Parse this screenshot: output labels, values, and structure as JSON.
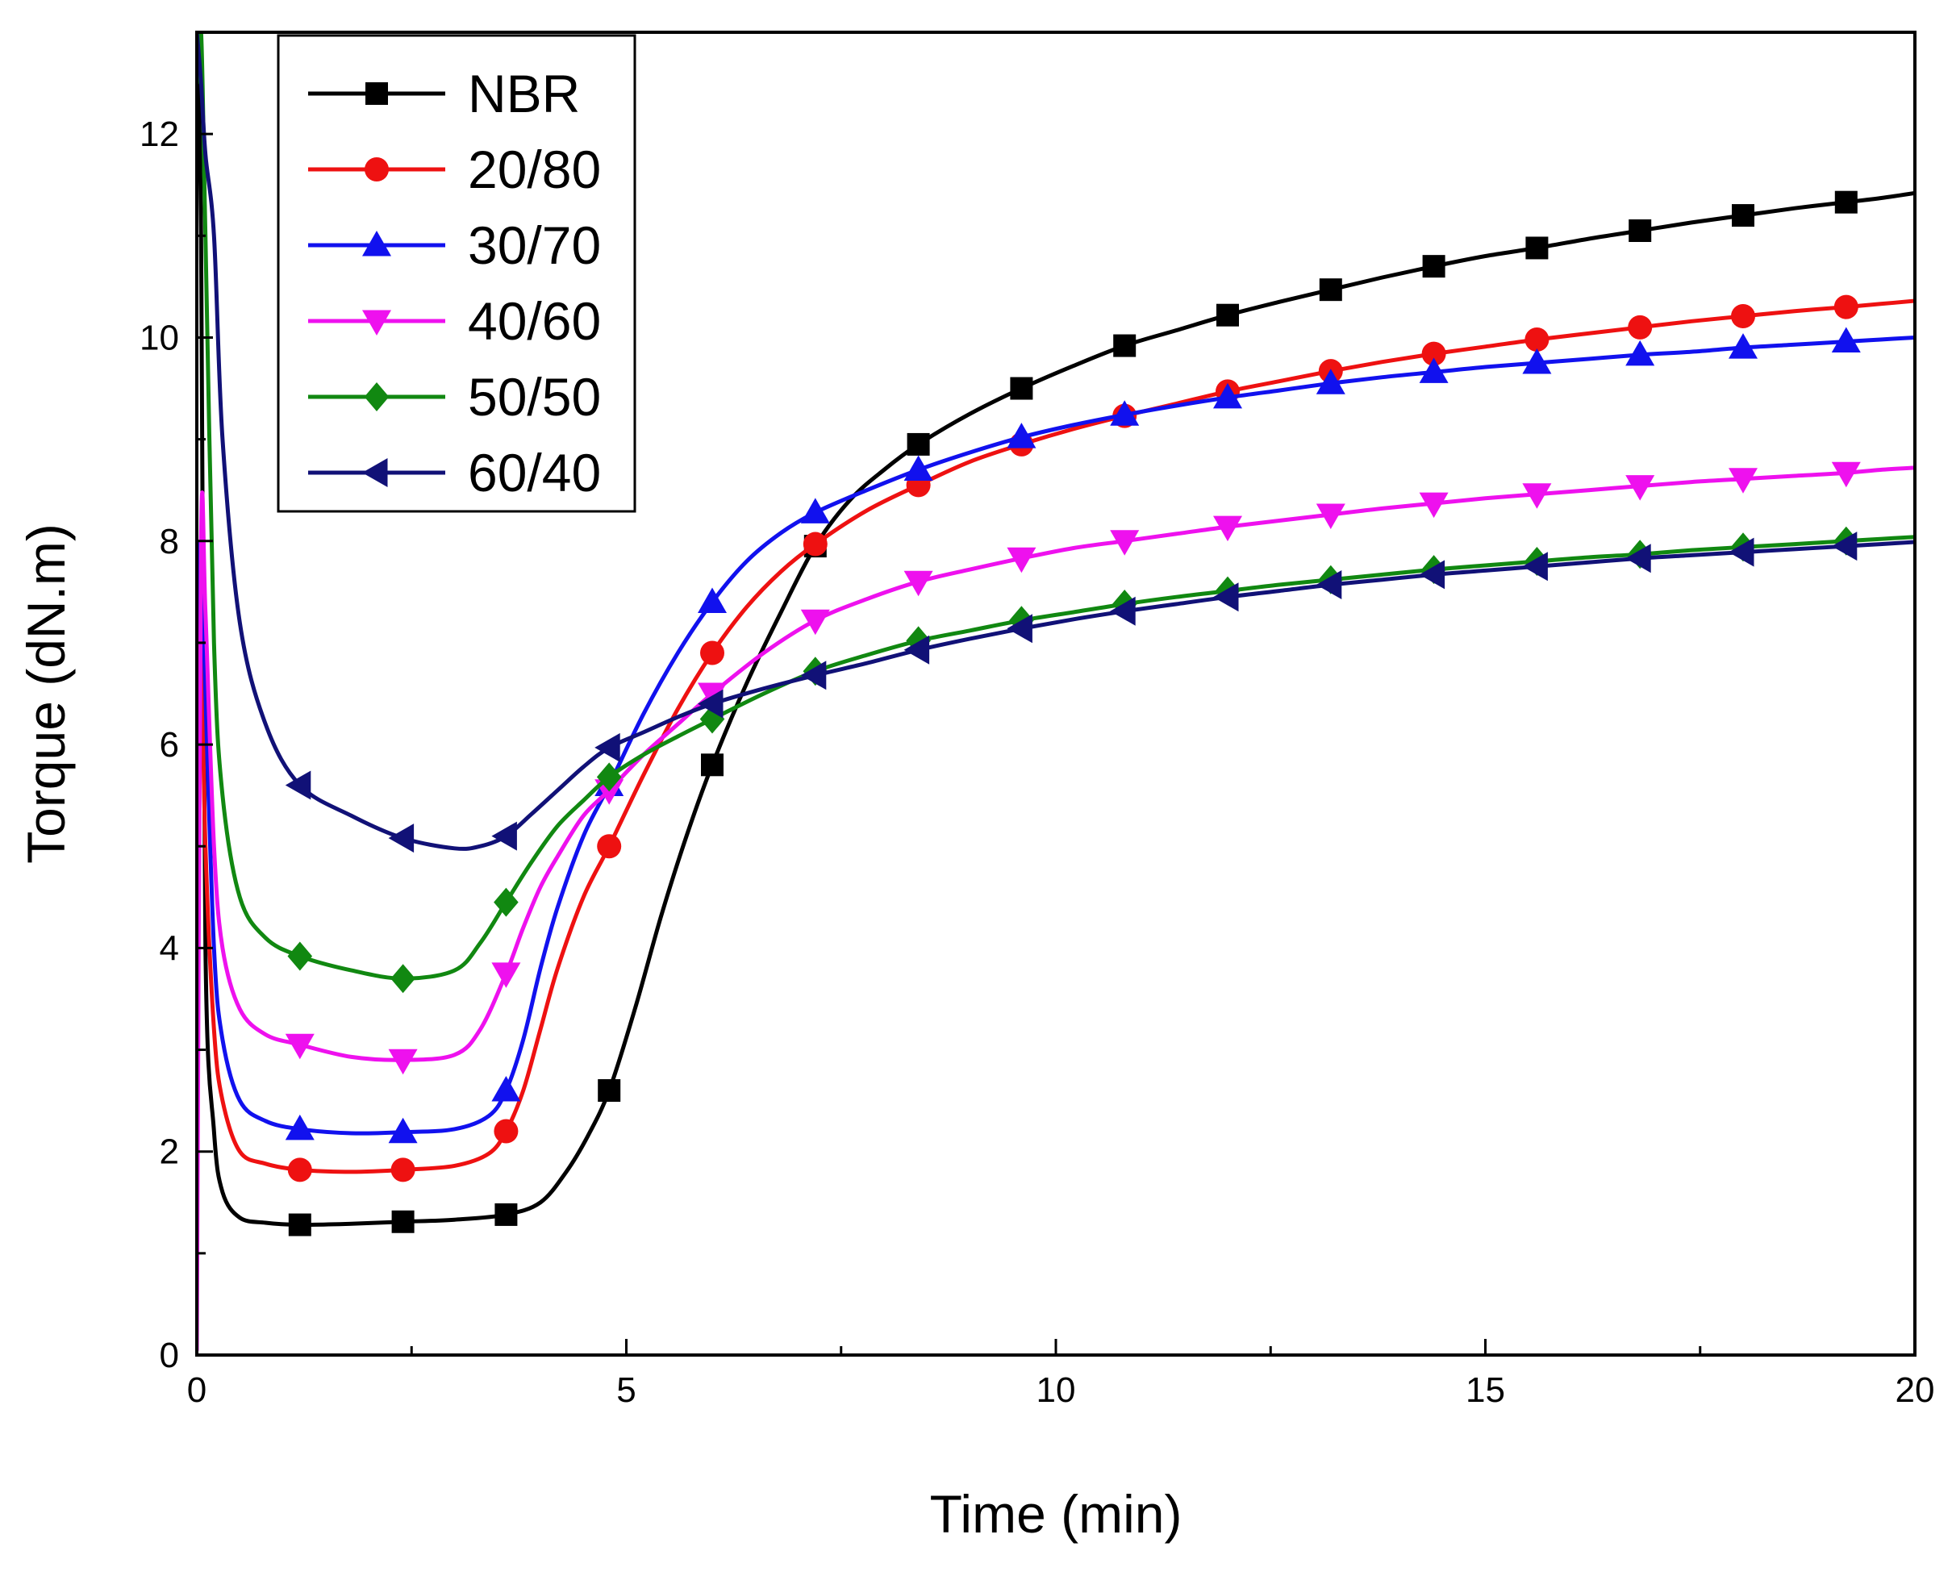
{
  "chart_data": {
    "type": "line",
    "title": "",
    "xlabel": "Time (min)",
    "ylabel": "Torque (dN.m)",
    "xlim": [
      0,
      20
    ],
    "ylim": [
      0,
      13
    ],
    "xticks": [
      0,
      5,
      10,
      15,
      20
    ],
    "yticks": [
      0,
      2,
      4,
      6,
      8,
      10,
      12
    ],
    "grid": false,
    "legend_position": "top-left",
    "series": [
      {
        "name": "NBR",
        "color": "#000000",
        "marker": "square",
        "x": [
          0.0,
          0.05,
          0.1,
          0.2,
          0.3,
          0.5,
          0.8,
          1.2,
          1.8,
          2.4,
          3.0,
          3.6,
          4.0,
          4.3,
          4.55,
          4.8,
          5.1,
          5.4,
          5.7,
          6.0,
          6.4,
          6.8,
          7.2,
          7.6,
          8.0,
          8.4,
          9.0,
          9.6,
          10.2,
          10.8,
          11.4,
          12.0,
          12.6,
          13.2,
          13.8,
          14.4,
          15.0,
          15.6,
          16.2,
          16.8,
          17.4,
          18.0,
          18.6,
          19.2,
          19.6,
          20.0
        ],
        "y": [
          13.0,
          11.0,
          4.0,
          2.2,
          1.6,
          1.35,
          1.3,
          1.28,
          1.29,
          1.31,
          1.33,
          1.38,
          1.5,
          1.8,
          2.15,
          2.6,
          3.4,
          4.3,
          5.1,
          5.8,
          6.6,
          7.3,
          7.95,
          8.4,
          8.7,
          8.95,
          9.25,
          9.5,
          9.72,
          9.92,
          10.07,
          10.22,
          10.35,
          10.47,
          10.59,
          10.7,
          10.8,
          10.88,
          10.97,
          11.05,
          11.13,
          11.2,
          11.27,
          11.33,
          11.37,
          11.42
        ],
        "markers_x": [
          1.2,
          2.4,
          3.6,
          4.8,
          6.0,
          7.2,
          8.4,
          9.6,
          10.8,
          12.0,
          13.2,
          14.4,
          15.6,
          16.8,
          18.0,
          19.2
        ]
      },
      {
        "name": "20/80",
        "color": "#ee1111",
        "marker": "circle",
        "x": [
          0.0,
          0.05,
          0.1,
          0.2,
          0.3,
          0.5,
          0.8,
          1.2,
          1.8,
          2.4,
          3.0,
          3.4,
          3.6,
          3.8,
          4.0,
          4.2,
          4.5,
          4.8,
          5.2,
          5.6,
          6.0,
          6.4,
          6.8,
          7.2,
          7.8,
          8.4,
          9.0,
          9.6,
          10.2,
          10.8,
          11.4,
          12.0,
          12.6,
          13.2,
          13.8,
          14.4,
          15.0,
          15.6,
          16.2,
          16.8,
          17.4,
          18.0,
          18.6,
          19.2,
          19.6,
          20.0
        ],
        "y": [
          6.0,
          7.0,
          5.0,
          3.2,
          2.5,
          2.0,
          1.88,
          1.82,
          1.8,
          1.82,
          1.86,
          1.98,
          2.2,
          2.6,
          3.2,
          3.8,
          4.5,
          5.0,
          5.7,
          6.35,
          6.9,
          7.35,
          7.7,
          7.97,
          8.3,
          8.55,
          8.78,
          8.95,
          9.1,
          9.23,
          9.35,
          9.47,
          9.57,
          9.67,
          9.76,
          9.84,
          9.91,
          9.98,
          10.04,
          10.1,
          10.16,
          10.21,
          10.26,
          10.3,
          10.33,
          10.36
        ],
        "markers_x": [
          1.2,
          2.4,
          3.6,
          4.8,
          6.0,
          7.2,
          8.4,
          9.6,
          10.8,
          12.0,
          13.2,
          14.4,
          15.6,
          16.8,
          18.0,
          19.2
        ]
      },
      {
        "name": "30/70",
        "color": "#1111ee",
        "marker": "triangle-up",
        "x": [
          0.0,
          0.05,
          0.1,
          0.2,
          0.3,
          0.5,
          0.8,
          1.2,
          1.8,
          2.4,
          3.0,
          3.4,
          3.6,
          3.8,
          4.0,
          4.2,
          4.5,
          4.8,
          5.2,
          5.6,
          6.0,
          6.4,
          6.8,
          7.2,
          7.8,
          8.4,
          9.0,
          9.6,
          10.2,
          10.8,
          11.4,
          12.0,
          12.6,
          13.2,
          13.8,
          14.4,
          15.0,
          15.6,
          16.2,
          16.8,
          17.4,
          18.0,
          18.6,
          19.2,
          19.6,
          20.0
        ],
        "y": [
          7.0,
          8.0,
          6.5,
          4.0,
          3.1,
          2.5,
          2.3,
          2.22,
          2.18,
          2.19,
          2.22,
          2.35,
          2.6,
          3.1,
          3.8,
          4.4,
          5.1,
          5.6,
          6.3,
          6.9,
          7.4,
          7.8,
          8.08,
          8.28,
          8.5,
          8.7,
          8.87,
          9.02,
          9.14,
          9.24,
          9.33,
          9.41,
          9.48,
          9.55,
          9.61,
          9.66,
          9.71,
          9.75,
          9.79,
          9.83,
          9.86,
          9.9,
          9.93,
          9.96,
          9.98,
          10.0
        ],
        "markers_x": [
          1.2,
          2.4,
          3.6,
          4.8,
          6.0,
          7.2,
          8.4,
          9.6,
          10.8,
          12.0,
          13.2,
          14.4,
          15.6,
          16.8,
          18.0,
          19.2
        ]
      },
      {
        "name": "40/60",
        "color": "#ee11ee",
        "marker": "triangle-down",
        "x": [
          0.0,
          0.05,
          0.1,
          0.2,
          0.3,
          0.5,
          0.8,
          1.2,
          1.8,
          2.4,
          3.0,
          3.3,
          3.6,
          3.8,
          4.0,
          4.2,
          4.5,
          4.8,
          5.2,
          5.6,
          6.0,
          6.6,
          7.2,
          7.8,
          8.4,
          9.0,
          9.6,
          10.2,
          10.8,
          11.4,
          12.0,
          12.6,
          13.2,
          13.8,
          14.4,
          15.0,
          15.6,
          16.2,
          16.8,
          17.4,
          18.0,
          18.6,
          19.2,
          19.6,
          20.0
        ],
        "y": [
          0.05,
          8.0,
          7.3,
          5.0,
          4.0,
          3.4,
          3.15,
          3.05,
          2.93,
          2.9,
          2.95,
          3.2,
          3.75,
          4.2,
          4.6,
          4.9,
          5.3,
          5.55,
          5.9,
          6.2,
          6.5,
          6.9,
          7.22,
          7.43,
          7.6,
          7.72,
          7.83,
          7.93,
          8.0,
          8.07,
          8.14,
          8.2,
          8.26,
          8.32,
          8.37,
          8.42,
          8.46,
          8.5,
          8.54,
          8.58,
          8.61,
          8.64,
          8.67,
          8.7,
          8.72
        ],
        "markers_x": [
          1.2,
          2.4,
          3.6,
          4.8,
          6.0,
          7.2,
          8.4,
          9.6,
          10.8,
          12.0,
          13.2,
          14.4,
          15.6,
          16.8,
          18.0,
          19.2
        ]
      },
      {
        "name": "50/50",
        "color": "#118811",
        "marker": "diamond",
        "x": [
          0.0,
          0.05,
          0.1,
          0.2,
          0.3,
          0.5,
          0.8,
          1.2,
          1.8,
          2.4,
          3.0,
          3.3,
          3.6,
          3.9,
          4.2,
          4.5,
          4.8,
          5.2,
          5.6,
          6.0,
          6.6,
          7.2,
          7.8,
          8.4,
          9.0,
          9.6,
          10.2,
          10.8,
          11.4,
          12.0,
          12.6,
          13.2,
          13.8,
          14.4,
          15.0,
          15.6,
          16.2,
          16.8,
          17.4,
          18.0,
          18.6,
          19.2,
          19.6,
          20.0
        ],
        "y": [
          12.5,
          13.0,
          11.0,
          7.0,
          5.5,
          4.5,
          4.1,
          3.92,
          3.78,
          3.7,
          3.78,
          4.05,
          4.45,
          4.85,
          5.2,
          5.45,
          5.68,
          5.9,
          6.08,
          6.25,
          6.5,
          6.72,
          6.88,
          7.02,
          7.12,
          7.22,
          7.3,
          7.38,
          7.45,
          7.51,
          7.57,
          7.62,
          7.67,
          7.72,
          7.76,
          7.8,
          7.84,
          7.87,
          7.91,
          7.94,
          7.97,
          8.0,
          8.02,
          8.04
        ],
        "markers_x": [
          1.2,
          2.4,
          3.6,
          4.8,
          6.0,
          7.2,
          8.4,
          9.6,
          10.8,
          12.0,
          13.2,
          14.4,
          15.6,
          16.8,
          18.0,
          19.2
        ]
      },
      {
        "name": "60/40",
        "color": "#111177",
        "marker": "triangle-left",
        "x": [
          0.0,
          0.05,
          0.1,
          0.2,
          0.3,
          0.5,
          0.8,
          1.2,
          1.8,
          2.4,
          3.0,
          3.3,
          3.6,
          3.9,
          4.2,
          4.5,
          4.8,
          5.2,
          5.6,
          6.0,
          6.6,
          7.2,
          7.8,
          8.4,
          9.0,
          9.6,
          10.2,
          10.8,
          11.4,
          12.0,
          12.6,
          13.2,
          13.8,
          14.4,
          15.0,
          15.6,
          16.2,
          16.8,
          17.4,
          18.0,
          18.6,
          19.2,
          19.6,
          20.0
        ],
        "y": [
          13.0,
          12.5,
          11.8,
          11.0,
          9.0,
          7.2,
          6.2,
          5.6,
          5.3,
          5.08,
          4.98,
          5.0,
          5.1,
          5.32,
          5.55,
          5.78,
          5.97,
          6.12,
          6.27,
          6.4,
          6.55,
          6.68,
          6.8,
          6.93,
          7.04,
          7.14,
          7.23,
          7.31,
          7.38,
          7.45,
          7.51,
          7.57,
          7.62,
          7.67,
          7.71,
          7.75,
          7.79,
          7.83,
          7.86,
          7.89,
          7.92,
          7.95,
          7.97,
          7.99
        ],
        "markers_x": [
          1.2,
          2.4,
          3.6,
          4.8,
          6.0,
          7.2,
          8.4,
          9.6,
          10.8,
          12.0,
          13.2,
          14.4,
          15.6,
          16.8,
          18.0,
          19.2
        ]
      }
    ]
  }
}
